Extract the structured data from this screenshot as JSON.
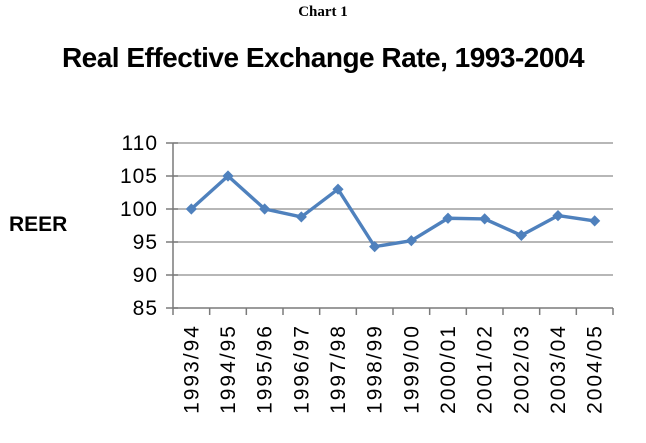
{
  "header": {
    "chart_label": "Chart 1",
    "title": "Real Effective Exchange Rate, 1993-2004"
  },
  "chart_data": {
    "type": "line",
    "title": "Real Effective Exchange Rate, 1993-2004",
    "xlabel": "",
    "ylabel": "REER",
    "categories": [
      "1993/94",
      "1994/95",
      "1995/96",
      "1996/97",
      "1997/98",
      "1998/99",
      "1999/00",
      "2000/01",
      "2001/02",
      "2002/03",
      "2003/04",
      "2004/05"
    ],
    "series": [
      {
        "name": "REER",
        "values": [
          100,
          105,
          100,
          98.8,
          103,
          94.3,
          95.2,
          98.6,
          98.5,
          96,
          99,
          98.2
        ]
      }
    ],
    "ylim": [
      85,
      110
    ],
    "yticks": [
      85,
      90,
      95,
      100,
      105,
      110
    ],
    "grid": true,
    "legend_position": "none",
    "marker": "diamond",
    "colors": {
      "line": "#4F81BD",
      "marker": "#4F81BD",
      "gridline": "#8C8C8C",
      "axis": "#7A7A7A",
      "text": "#000000"
    }
  }
}
